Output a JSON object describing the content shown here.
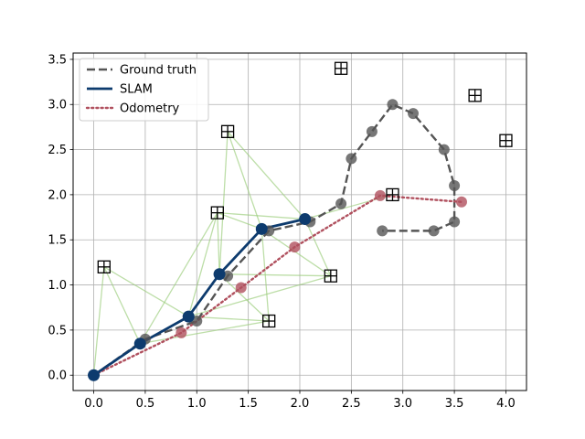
{
  "chart_data": {
    "type": "line",
    "title": "",
    "xlabel": "",
    "ylabel": "",
    "xlim": [
      -0.2,
      4.2
    ],
    "ylim": [
      -0.17,
      3.57
    ],
    "xticks": [
      0.0,
      0.5,
      1.0,
      1.5,
      2.0,
      2.5,
      3.0,
      3.5,
      4.0
    ],
    "yticks": [
      0.0,
      0.5,
      1.0,
      1.5,
      2.0,
      2.5,
      3.0,
      3.5
    ],
    "grid": true,
    "legend_position": "upper-left",
    "series": [
      {
        "name": "Ground truth",
        "style": "dashed",
        "color": "#555555",
        "marker_color": "#555555",
        "x": [
          0.0,
          0.5,
          1.0,
          1.3,
          1.7,
          2.1,
          2.4,
          2.5,
          2.7,
          2.9,
          3.1,
          3.4,
          3.5,
          3.5,
          3.3,
          2.8
        ],
        "y": [
          0.0,
          0.4,
          0.6,
          1.1,
          1.6,
          1.7,
          1.9,
          2.4,
          2.7,
          3.0,
          2.9,
          2.5,
          2.1,
          1.7,
          1.6,
          1.6
        ]
      },
      {
        "name": "SLAM",
        "style": "solid",
        "color": "#0d3b6e",
        "marker_color": "#0d3b6e",
        "x": [
          0.0,
          0.45,
          0.92,
          1.22,
          1.63,
          2.05
        ],
        "y": [
          0.0,
          0.35,
          0.65,
          1.12,
          1.62,
          1.73
        ]
      },
      {
        "name": "Odometry",
        "style": "dotted",
        "color": "#b0505e",
        "marker_color": "#b0505e",
        "x": [
          0.0,
          0.85,
          1.43,
          1.95,
          2.78,
          3.57
        ],
        "y": [
          0.0,
          0.47,
          0.97,
          1.42,
          1.99,
          1.92
        ]
      }
    ],
    "landmarks": {
      "x": [
        0.1,
        1.3,
        1.2,
        1.7,
        2.3,
        2.4,
        2.9,
        3.7,
        4.0
      ],
      "y": [
        1.2,
        2.7,
        1.8,
        0.6,
        1.1,
        3.4,
        2.0,
        3.1,
        2.6
      ]
    },
    "observations": [
      [
        [
          0.0,
          0.0
        ],
        [
          0.1,
          1.2
        ]
      ],
      [
        [
          0.45,
          0.35
        ],
        [
          0.1,
          1.2
        ]
      ],
      [
        [
          0.45,
          0.35
        ],
        [
          1.7,
          0.6
        ]
      ],
      [
        [
          0.45,
          0.35
        ],
        [
          1.2,
          1.8
        ]
      ],
      [
        [
          0.92,
          0.65
        ],
        [
          0.1,
          1.2
        ]
      ],
      [
        [
          0.92,
          0.65
        ],
        [
          1.2,
          1.8
        ]
      ],
      [
        [
          0.92,
          0.65
        ],
        [
          1.7,
          0.6
        ]
      ],
      [
        [
          0.92,
          0.65
        ],
        [
          2.3,
          1.1
        ]
      ],
      [
        [
          1.22,
          1.12
        ],
        [
          1.3,
          2.7
        ]
      ],
      [
        [
          1.22,
          1.12
        ],
        [
          1.2,
          1.8
        ]
      ],
      [
        [
          1.22,
          1.12
        ],
        [
          2.3,
          1.1
        ]
      ],
      [
        [
          1.22,
          1.12
        ],
        [
          1.7,
          0.6
        ]
      ],
      [
        [
          1.63,
          1.62
        ],
        [
          1.3,
          2.7
        ]
      ],
      [
        [
          1.63,
          1.62
        ],
        [
          1.2,
          1.8
        ]
      ],
      [
        [
          1.63,
          1.62
        ],
        [
          2.3,
          1.1
        ]
      ],
      [
        [
          1.63,
          1.62
        ],
        [
          1.7,
          0.6
        ]
      ],
      [
        [
          2.05,
          1.73
        ],
        [
          1.3,
          2.7
        ]
      ],
      [
        [
          2.05,
          1.73
        ],
        [
          1.2,
          1.8
        ]
      ],
      [
        [
          2.05,
          1.73
        ],
        [
          2.3,
          1.1
        ]
      ],
      [
        [
          2.05,
          1.73
        ],
        [
          2.9,
          2.0
        ]
      ]
    ],
    "observation_color": "#9acd7a"
  }
}
